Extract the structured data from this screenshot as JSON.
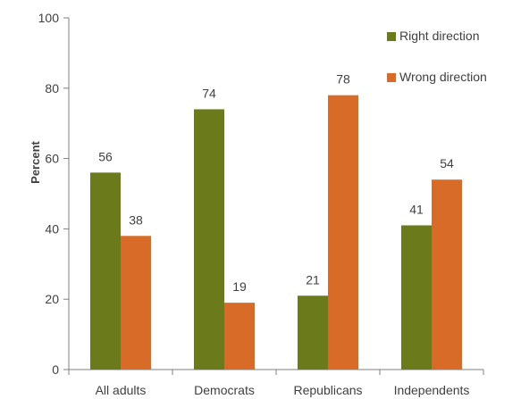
{
  "chart_data": {
    "type": "bar",
    "title": "",
    "xlabel": "",
    "ylabel": "Percent",
    "ylim": [
      0,
      100
    ],
    "yticks": [
      0,
      20,
      40,
      60,
      80,
      100
    ],
    "categories": [
      "All adults",
      "Democrats",
      "Republicans",
      "Independents"
    ],
    "series": [
      {
        "name": "Right direction",
        "color": "#6b7a1a",
        "values": [
          56,
          74,
          21,
          41
        ]
      },
      {
        "name": "Wrong direction",
        "color": "#d86b27",
        "values": [
          38,
          19,
          78,
          54
        ]
      }
    ],
    "legend_position": "top-right",
    "grid": false
  }
}
